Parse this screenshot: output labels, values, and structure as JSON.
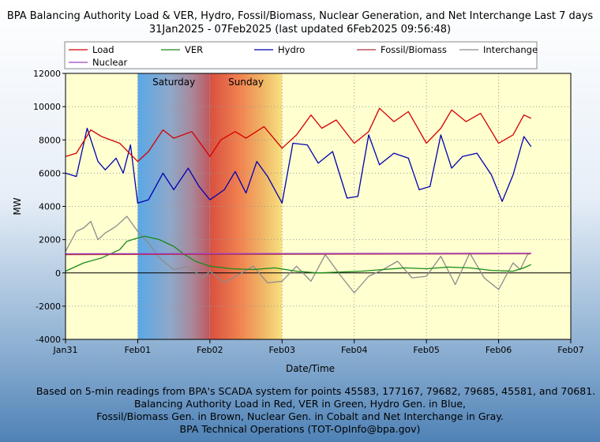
{
  "title": "BPA Balancing Authority Load & VER, Hydro, Fossil/Biomass, Nuclear Generation, and Net Interchange Last 7 days",
  "subtitle": "31Jan2025 - 07Feb2025 (last updated 6Feb2025 09:56:48)",
  "footer": [
    "Based on 5-min readings from BPA's SCADA system for points 45583, 177167, 79682, 79685, 45581, and 70681.",
    "Balancing Authority Load in Red, VER in Green, Hydro Gen. in Blue,",
    "Fossil/Biomass Gen. in Brown, Nuclear Gen. in Cobalt and Net Interchange in Gray.",
    "BPA Technical Operations (TOT-OpInfo@bpa.gov)"
  ],
  "colors": {
    "load": "#d40000",
    "ver": "#1a8a1a",
    "hydro": "#0000b0",
    "fossil": "#b03040",
    "interchange": "#8c8c8c",
    "nuclear": "#a040c0",
    "plot_bg": "#ffffd0"
  },
  "chart_data": {
    "type": "line",
    "xlabel": "Date/Time",
    "ylabel": "MW",
    "ylim": [
      -4000,
      12000
    ],
    "yticks": [
      -4000,
      -2000,
      0,
      2000,
      4000,
      6000,
      8000,
      10000,
      12000
    ],
    "yticklabels": [
      "-4000",
      "-2000",
      "0",
      "2000",
      "4000",
      "6000",
      "8000",
      "10000",
      "12000"
    ],
    "xlim_days": [
      0,
      7
    ],
    "xticks": [
      0,
      1,
      2,
      3,
      4,
      5,
      6,
      7
    ],
    "xticklabels": [
      "Jan31",
      "Feb01",
      "Feb02",
      "Feb03",
      "Feb04",
      "Feb05",
      "Feb06",
      "Feb07"
    ],
    "weekend_labels": [
      {
        "label": "Saturday",
        "start": 1,
        "end": 2
      },
      {
        "label": "Sunday",
        "start": 2,
        "end": 3
      }
    ],
    "legend_placement": "top",
    "series": [
      {
        "name": "Load",
        "key": "load",
        "x": [
          0,
          0.15,
          0.35,
          0.5,
          0.75,
          1.0,
          1.15,
          1.35,
          1.5,
          1.75,
          2.0,
          2.15,
          2.35,
          2.5,
          2.75,
          3.0,
          3.2,
          3.4,
          3.55,
          3.75,
          4.0,
          4.2,
          4.35,
          4.55,
          4.75,
          5.0,
          5.2,
          5.35,
          5.55,
          5.75,
          6.0,
          6.2,
          6.35,
          6.45
        ],
        "y": [
          7000,
          7200,
          8600,
          8200,
          7800,
          6700,
          7300,
          8600,
          8100,
          8500,
          7000,
          8000,
          8500,
          8100,
          8800,
          7500,
          8300,
          9500,
          8700,
          9200,
          7800,
          8500,
          9900,
          9100,
          9700,
          7800,
          8700,
          9800,
          9100,
          9600,
          7800,
          8300,
          9500,
          9300
        ]
      },
      {
        "name": "VER",
        "key": "ver",
        "x": [
          0,
          0.25,
          0.5,
          0.75,
          0.85,
          1.0,
          1.1,
          1.3,
          1.5,
          1.65,
          1.8,
          2.0,
          2.3,
          2.6,
          2.9,
          3.2,
          3.5,
          3.8,
          4.1,
          4.4,
          4.7,
          5.0,
          5.3,
          5.6,
          5.9,
          6.2,
          6.35,
          6.45
        ],
        "y": [
          100,
          600,
          900,
          1400,
          1900,
          2100,
          2200,
          2000,
          1600,
          1100,
          700,
          400,
          250,
          200,
          300,
          100,
          0,
          50,
          100,
          200,
          300,
          250,
          350,
          300,
          150,
          100,
          300,
          500
        ]
      },
      {
        "name": "Hydro",
        "key": "hydro",
        "x": [
          0,
          0.15,
          0.3,
          0.45,
          0.55,
          0.7,
          0.8,
          0.9,
          1.0,
          1.15,
          1.35,
          1.5,
          1.7,
          1.85,
          2.0,
          2.2,
          2.35,
          2.5,
          2.65,
          2.8,
          3.0,
          3.15,
          3.35,
          3.5,
          3.7,
          3.9,
          4.05,
          4.2,
          4.35,
          4.55,
          4.75,
          4.9,
          5.05,
          5.2,
          5.35,
          5.5,
          5.7,
          5.9,
          6.05,
          6.2,
          6.35,
          6.45
        ],
        "y": [
          6000,
          5800,
          8700,
          6700,
          6200,
          6900,
          6000,
          7700,
          4200,
          4400,
          6000,
          5000,
          6300,
          5200,
          4400,
          5000,
          6100,
          4800,
          6700,
          5800,
          4200,
          7800,
          7700,
          6600,
          7300,
          4500,
          4600,
          8300,
          6500,
          7200,
          6900,
          5000,
          5200,
          8300,
          6300,
          7000,
          7200,
          5900,
          4300,
          5900,
          8200,
          7600
        ]
      },
      {
        "name": "Fossil/Biomass",
        "key": "fossil",
        "x": [
          0,
          6.45
        ],
        "y": [
          1100,
          1150
        ]
      },
      {
        "name": "Interchange",
        "key": "interchange",
        "x": [
          0,
          0.15,
          0.25,
          0.35,
          0.45,
          0.55,
          0.7,
          0.85,
          1.0,
          1.15,
          1.3,
          1.5,
          1.7,
          1.9,
          2.0,
          2.2,
          2.4,
          2.6,
          2.8,
          3.0,
          3.2,
          3.4,
          3.6,
          3.8,
          4.0,
          4.2,
          4.4,
          4.6,
          4.8,
          5.0,
          5.2,
          5.4,
          5.6,
          5.8,
          6.0,
          6.2,
          6.3,
          6.4,
          6.45
        ],
        "y": [
          1300,
          2500,
          2700,
          3100,
          2000,
          2400,
          2800,
          3400,
          2500,
          1800,
          900,
          200,
          400,
          -300,
          100,
          -600,
          -100,
          400,
          -600,
          -500,
          400,
          -500,
          1100,
          -100,
          -1200,
          -200,
          200,
          700,
          -300,
          -200,
          1000,
          -700,
          1200,
          -300,
          -1000,
          600,
          200,
          1100,
          1200
        ]
      },
      {
        "name": "Nuclear",
        "key": "nuclear",
        "x": [
          0,
          6.45
        ],
        "y": [
          1150,
          1180
        ]
      }
    ]
  }
}
